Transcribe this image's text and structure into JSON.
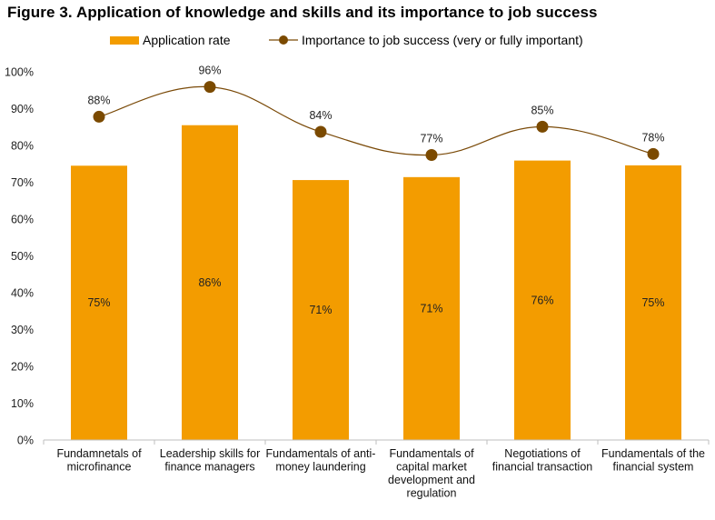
{
  "figure_title": "Figure 3. Application of knowledge and skills and its importance to job success",
  "colors": {
    "bar": "#F39C00",
    "line": "#7A4A08",
    "marker": "#7B4A00",
    "axis": "#BFBFBF"
  },
  "legend": {
    "bar_label": "Application rate",
    "line_label": "Importance to job success (very or fully important)"
  },
  "chart_data": {
    "type": "bar",
    "title": "Figure 3. Application of knowledge and skills and its importance to job success",
    "categories": [
      [
        "Fundamnetals of",
        "microfinance"
      ],
      [
        "Leadership skills for",
        "finance managers"
      ],
      [
        "Fundamentals of anti-",
        "money laundering"
      ],
      [
        "Fundamentals of",
        "capital market",
        "development and",
        "regulation"
      ],
      [
        "Negotiations of",
        "financial transaction"
      ],
      [
        "Fundamentals of the",
        "financial system"
      ]
    ],
    "series": [
      {
        "name": "Application rate",
        "type": "bar",
        "values": [
          74.5,
          85.5,
          70.6,
          71.4,
          75.9,
          74.6
        ],
        "labels": [
          "75%",
          "86%",
          "71%",
          "71%",
          "76%",
          "75%"
        ]
      },
      {
        "name": "Importance to job success (very or fully important)",
        "type": "line",
        "values": [
          87.8,
          95.9,
          83.7,
          77.4,
          85.1,
          77.7
        ],
        "labels": [
          "88%",
          "96%",
          "84%",
          "77%",
          "85%",
          "78%"
        ]
      }
    ],
    "y_ticks": [
      "0%",
      "10%",
      "20%",
      "30%",
      "40%",
      "50%",
      "60%",
      "70%",
      "80%",
      "90%",
      "100%"
    ],
    "ylim": [
      0,
      100
    ],
    "grid": false,
    "legend_position": "top-center"
  }
}
